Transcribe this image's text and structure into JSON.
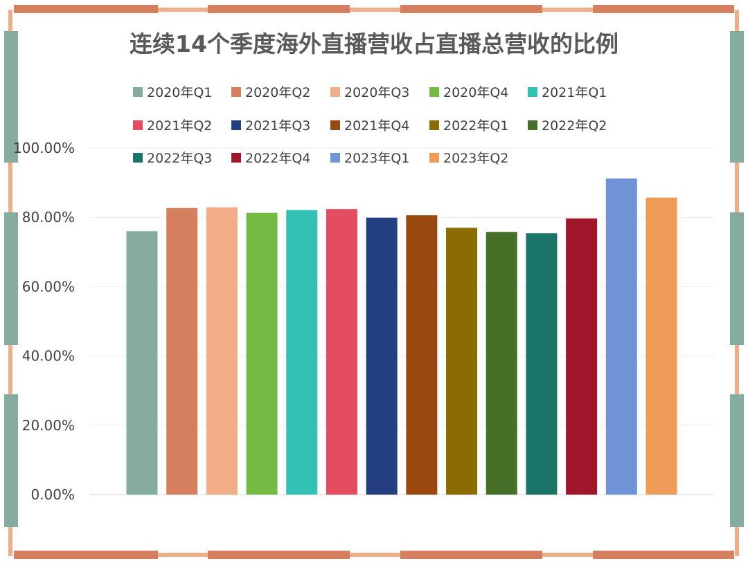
{
  "chart_data": {
    "type": "bar",
    "title": "连续14个季度海外直播营收占直播总营收的比例",
    "xlabel": "",
    "ylabel": "",
    "ylim": [
      0,
      100
    ],
    "y_ticks": [
      "0.00%",
      "20.00%",
      "40.00%",
      "60.00%",
      "80.00%",
      "100.00%"
    ],
    "grid": true,
    "legend_position": "top",
    "categories": [
      "2020年Q1",
      "2020年Q2",
      "2020年Q3",
      "2020年Q4",
      "2021年Q1",
      "2021年Q2",
      "2021年Q3",
      "2021年Q4",
      "2022年Q1",
      "2022年Q2",
      "2022年Q3",
      "2022年Q4",
      "2023年Q1",
      "2023年Q2"
    ],
    "values": [
      76.0,
      82.7,
      82.9,
      81.3,
      82.1,
      82.4,
      79.9,
      80.6,
      77.0,
      75.8,
      75.4,
      79.7,
      91.2,
      85.7
    ],
    "colors": [
      "#86ab9f",
      "#d67f5f",
      "#f0ad87",
      "#75ba43",
      "#31c1b5",
      "#e44d60",
      "#243f80",
      "#99480e",
      "#8c6c00",
      "#466f28",
      "#1b7468",
      "#a0162a",
      "#7093d6",
      "#ef9b58"
    ]
  },
  "frame": {
    "colors": {
      "orange_dark": "#d67f5f",
      "orange_light": "#f0ad87",
      "teal": "#86ab9f"
    }
  }
}
